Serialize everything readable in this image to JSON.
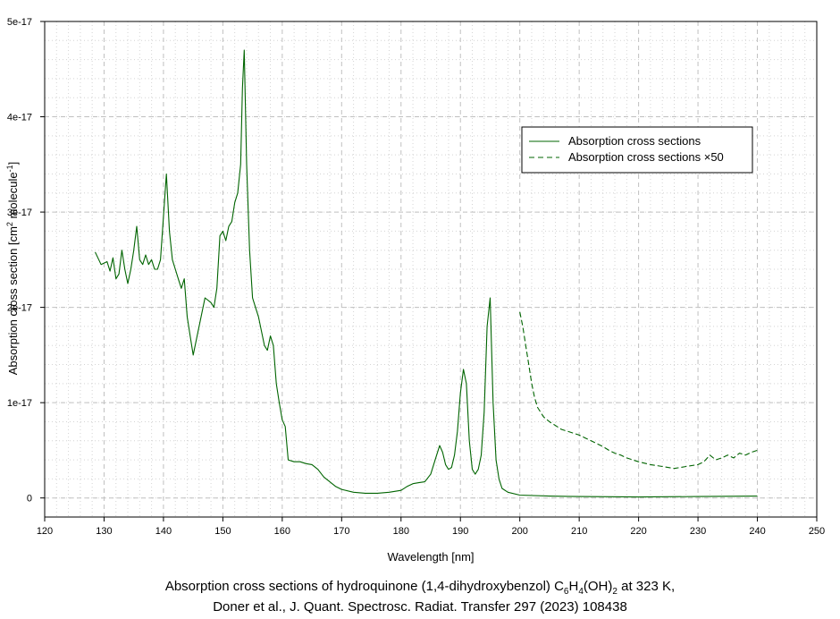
{
  "chart_data": {
    "type": "line",
    "xlabel": "Wavelength [nm]",
    "ylabel": "Absorption cross section [cm",
    "ylabel_sup1": "2",
    "ylabel_mid": " molecule",
    "ylabel_sup2": "-1",
    "ylabel_end": "]",
    "xlim": [
      120,
      250
    ],
    "ylim": [
      -2e-18,
      5e-17
    ],
    "x_ticks": [
      120,
      130,
      140,
      150,
      160,
      170,
      180,
      190,
      200,
      210,
      220,
      230,
      240,
      250
    ],
    "x_tick_labels": [
      "120",
      "130",
      "140",
      "150",
      "160",
      "170",
      "180",
      "190",
      "200",
      "210",
      "220",
      "230",
      "240",
      "250"
    ],
    "y_ticks": [
      0,
      1e-17,
      2e-17,
      3e-17,
      4e-17,
      5e-17
    ],
    "y_tick_labels": [
      "0",
      "1e-17",
      "2e-17",
      "3e-17",
      "4e-17",
      "5e-17"
    ],
    "grid": true,
    "legend_position": "top-right",
    "series": [
      {
        "name": "Absorption cross sections",
        "color": "#006400",
        "style": "solid",
        "x": [
          128.5,
          129.5,
          130.5,
          131.0,
          131.5,
          132.0,
          132.5,
          133.0,
          133.5,
          134.0,
          134.5,
          135.0,
          135.5,
          136.0,
          136.5,
          137.0,
          137.5,
          138.0,
          138.5,
          139.0,
          139.5,
          140.0,
          140.5,
          141.0,
          141.5,
          142.0,
          142.5,
          143.0,
          143.5,
          144.0,
          144.5,
          145.0,
          146.0,
          147.0,
          148.0,
          148.5,
          149.0,
          149.5,
          150.0,
          150.5,
          151.0,
          151.5,
          152.0,
          152.5,
          153.0,
          153.3,
          153.6,
          154.0,
          154.5,
          155.0,
          155.5,
          156.0,
          156.5,
          157.0,
          157.5,
          158.0,
          158.5,
          159.0,
          159.5,
          160.0,
          160.5,
          161.0,
          162.0,
          163.0,
          164.0,
          165.0,
          166.0,
          167.0,
          168.0,
          169.0,
          170.0,
          172.0,
          174.0,
          176.0,
          178.0,
          180.0,
          181.0,
          182.0,
          183.0,
          184.0,
          185.0,
          186.0,
          186.5,
          187.0,
          187.5,
          188.0,
          188.5,
          189.0,
          189.5,
          190.0,
          190.5,
          191.0,
          191.5,
          192.0,
          192.5,
          193.0,
          193.5,
          194.0,
          194.5,
          195.0,
          195.5,
          196.0,
          196.5,
          197.0,
          198.0,
          200.0,
          205.0,
          210.0,
          220.0,
          230.0,
          240.0
        ],
        "y": [
          2.58e-17,
          2.45e-17,
          2.48e-17,
          2.38e-17,
          2.52e-17,
          2.3e-17,
          2.35e-17,
          2.6e-17,
          2.4e-17,
          2.25e-17,
          2.4e-17,
          2.6e-17,
          2.85e-17,
          2.5e-17,
          2.45e-17,
          2.55e-17,
          2.45e-17,
          2.5e-17,
          2.4e-17,
          2.4e-17,
          2.5e-17,
          2.95e-17,
          3.4e-17,
          2.8e-17,
          2.5e-17,
          2.4e-17,
          2.3e-17,
          2.2e-17,
          2.3e-17,
          1.9e-17,
          1.7e-17,
          1.5e-17,
          1.8e-17,
          2.1e-17,
          2.05e-17,
          2e-17,
          2.2e-17,
          2.75e-17,
          2.8e-17,
          2.7e-17,
          2.85e-17,
          2.9e-17,
          3.1e-17,
          3.2e-17,
          3.5e-17,
          4.3e-17,
          4.7e-17,
          3.5e-17,
          2.6e-17,
          2.1e-17,
          2e-17,
          1.9e-17,
          1.75e-17,
          1.6e-17,
          1.55e-17,
          1.7e-17,
          1.6e-17,
          1.2e-17,
          1e-17,
          8.2e-18,
          7.5e-18,
          4e-18,
          3.8e-18,
          3.8e-18,
          3.6e-18,
          3.5e-18,
          3e-18,
          2.2e-18,
          1.7e-18,
          1.2e-18,
          9e-19,
          6e-19,
          5e-19,
          5e-19,
          6e-19,
          8e-19,
          1.2e-18,
          1.5e-18,
          1.6e-18,
          1.7e-18,
          2.5e-18,
          4.5e-18,
          5.5e-18,
          4.8e-18,
          3.5e-18,
          3e-18,
          3.2e-18,
          4.5e-18,
          7e-18,
          1.1e-17,
          1.35e-17,
          1.2e-17,
          6e-18,
          3e-18,
          2.5e-18,
          3e-18,
          4.5e-18,
          9e-18,
          1.8e-17,
          2.1e-17,
          1e-17,
          4e-18,
          2e-18,
          1e-18,
          6e-19,
          3e-19,
          2e-19,
          1.5e-19,
          1e-19,
          1.5e-19,
          2e-19
        ]
      },
      {
        "name": "Absorption cross sections ×50",
        "color": "#006400",
        "style": "dashed",
        "x": [
          200.0,
          200.5,
          201.0,
          201.5,
          202.0,
          202.5,
          203.0,
          204.0,
          205.0,
          206.0,
          207.0,
          208.0,
          209.0,
          210.0,
          211.0,
          212.0,
          213.0,
          214.0,
          215.0,
          216.0,
          217.0,
          218.0,
          220.0,
          222.0,
          224.0,
          226.0,
          228.0,
          230.0,
          231.0,
          232.0,
          233.0,
          234.0,
          235.0,
          236.0,
          237.0,
          238.0,
          239.0,
          240.0
        ],
        "y": [
          1.95e-17,
          1.8e-17,
          1.6e-17,
          1.4e-17,
          1.2e-17,
          1.05e-17,
          9.5e-18,
          8.5e-18,
          8e-18,
          7.6e-18,
          7.2e-18,
          7e-18,
          6.8e-18,
          6.6e-18,
          6.3e-18,
          6e-18,
          5.7e-18,
          5.4e-18,
          5e-18,
          4.7e-18,
          4.5e-18,
          4.2e-18,
          3.8e-18,
          3.5e-18,
          3.3e-18,
          3.1e-18,
          3.3e-18,
          3.5e-18,
          3.8e-18,
          4.5e-18,
          4e-18,
          4.2e-18,
          4.5e-18,
          4.2e-18,
          4.7e-18,
          4.5e-18,
          4.8e-18,
          5e-18
        ]
      }
    ]
  },
  "caption": {
    "line1_a": "Absorption cross sections of hydroquinone (1,4-dihydroxybenzol) C",
    "line1_sub1": "6",
    "line1_b": "H",
    "line1_sub2": "4",
    "line1_c": "(OH)",
    "line1_sub3": "2",
    "line1_d": " at 323 K,",
    "line2": "Doner et al., J. Quant. Spectrosc. Radiat. Transfer 297 (2023) 108438"
  }
}
